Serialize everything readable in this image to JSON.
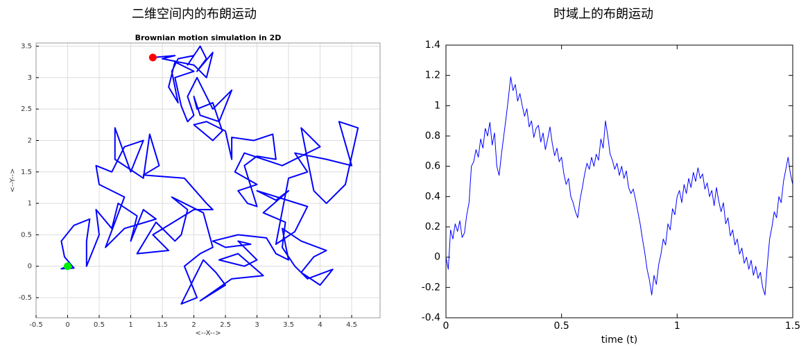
{
  "chart_data": [
    {
      "type": "line",
      "heading": "二维空间内的布朗运动",
      "title": "Brownian motion simulation in 2D",
      "xlabel": "<--X-->",
      "ylabel": "<--Y-->",
      "grid": true,
      "color": "#0000ff",
      "start_color": "#00ee00",
      "end_color": "#ff0000",
      "xlim": [
        -0.5,
        4.95
      ],
      "ylim": [
        -0.82,
        3.55
      ],
      "xticks": [
        -0.5,
        0,
        0.5,
        1,
        1.5,
        2,
        2.5,
        3,
        3.5,
        4,
        4.5
      ],
      "yticks": [
        -0.5,
        0,
        0.5,
        1,
        1.5,
        2,
        2.5,
        3,
        3.5
      ],
      "x": [
        0,
        -0.1,
        0.1,
        -0.05,
        -0.1,
        0.1,
        0.35,
        0.3,
        0.3,
        0.5,
        0.45,
        0.7,
        0.8,
        1.1,
        1.0,
        1.2,
        1.4,
        0.9,
        0.6,
        0.9,
        0.5,
        0.45,
        0.7,
        0.9,
        1.2,
        1.0,
        0.75,
        0.75,
        1.2,
        1.3,
        1.45,
        1.2,
        1.85,
        2.2,
        2.3,
        2.0,
        1.35,
        1.6,
        1.1,
        1.4,
        1.7,
        1.8,
        1.9,
        1.65,
        2.15,
        2.3,
        2.1,
        1.85,
        2.05,
        1.8,
        2.15,
        2.35,
        2.5,
        2.1,
        2.6,
        3.1,
        2.7,
        2.4,
        2.8,
        3.0,
        2.9,
        2.7,
        2.9,
        2.5,
        2.3,
        2.7,
        3.15,
        3.3,
        3.5,
        3.4,
        3.7,
        4.1,
        3.9,
        3.7,
        4.0,
        4.2,
        3.8,
        3.6,
        3.4,
        3.45,
        3.1,
        3.5,
        3.3,
        3.0,
        3.8,
        3.6,
        3.3,
        3.5,
        3.8,
        3.6,
        4.1,
        4.5,
        4.3,
        4.6,
        4.4,
        4.1,
        3.9,
        3.7,
        4.0,
        3.4,
        2.8,
        2.65,
        3.0,
        2.7,
        2.85,
        3.0,
        2.8,
        3.0,
        3.3,
        3.25,
        2.95,
        2.6,
        2.6,
        2.5,
        2.2,
        2.0,
        2.3,
        2.45,
        2.3,
        2.05,
        2.0,
        2.1,
        2.4,
        2.6,
        2.3,
        2.05,
        1.9,
        2.0,
        1.9,
        1.8,
        1.7,
        2.0,
        1.7,
        1.6,
        1.75,
        1.65,
        1.75,
        2.0,
        1.9,
        2.1,
        2.2,
        2.05,
        2.3,
        2.2,
        2.0,
        1.5,
        1.7,
        1.35
      ],
      "values": [
        0,
        -0.04,
        -0.03,
        0.15,
        0.4,
        0.65,
        0.75,
        0.4,
        0,
        0.5,
        0.9,
        0.6,
        1.0,
        0.8,
        0.4,
        0.9,
        0.75,
        0.6,
        0.3,
        1.1,
        1.3,
        1.6,
        1.5,
        1.9,
        2.0,
        1.5,
        2.2,
        1.7,
        1.4,
        2.1,
        1.6,
        1.45,
        1.4,
        1.0,
        0.9,
        0.9,
        0.5,
        0.25,
        0.2,
        0.7,
        0.4,
        0.5,
        0.9,
        1.1,
        0.85,
        0.3,
        0.2,
        0,
        -0.5,
        -0.6,
        0.1,
        -0.1,
        -0.3,
        -0.55,
        -0.2,
        -0.15,
        0.2,
        0.1,
        0,
        0.1,
        0.2,
        0.4,
        0.35,
        0.3,
        0.4,
        0.5,
        0.45,
        0.2,
        0.1,
        0.6,
        0.4,
        0.25,
        0.15,
        -0.1,
        -0.3,
        -0.05,
        -0.2,
        0,
        0.3,
        0.7,
        0.85,
        1.2,
        1.05,
        1.2,
        0.95,
        0.55,
        0.35,
        1.4,
        1.5,
        1.8,
        1.7,
        1.6,
        2.3,
        2.2,
        1.3,
        1.0,
        1.2,
        2.2,
        1.9,
        1.6,
        1.8,
        1.5,
        1.3,
        1.2,
        1.0,
        0.95,
        1.6,
        1.75,
        1.7,
        2.1,
        2.0,
        2.05,
        1.7,
        2.15,
        2.3,
        2.25,
        2.0,
        2.15,
        2.6,
        2.5,
        2.7,
        2.4,
        2.3,
        2.8,
        2.5,
        3.0,
        2.7,
        2.4,
        2.3,
        2.55,
        3.0,
        3.1,
        3.25,
        2.85,
        2.6,
        3.1,
        3.3,
        3.35,
        3.2,
        3.5,
        3.3,
        3.1,
        3.4,
        3.0,
        3.2,
        3.3,
        3.35,
        3.32
      ]
    },
    {
      "type": "line",
      "heading": "时域上的布朗运动",
      "xlabel": "time (t)",
      "grid": false,
      "color": "#0000ff",
      "xlim": [
        0,
        1.5
      ],
      "ylim": [
        -0.4,
        1.4
      ],
      "xticks": [
        0,
        0.5,
        1,
        1.5
      ],
      "yticks": [
        -0.4,
        -0.2,
        0,
        0.2,
        0.4,
        0.6,
        0.8,
        1,
        1.2,
        1.4
      ],
      "x": [
        0,
        0.01,
        0.02,
        0.03,
        0.04,
        0.05,
        0.06,
        0.07,
        0.08,
        0.09,
        0.1,
        0.11,
        0.12,
        0.13,
        0.14,
        0.15,
        0.16,
        0.17,
        0.18,
        0.19,
        0.2,
        0.21,
        0.22,
        0.23,
        0.24,
        0.25,
        0.26,
        0.27,
        0.28,
        0.29,
        0.3,
        0.31,
        0.32,
        0.33,
        0.34,
        0.35,
        0.36,
        0.37,
        0.38,
        0.39,
        0.4,
        0.41,
        0.42,
        0.43,
        0.44,
        0.45,
        0.46,
        0.47,
        0.48,
        0.49,
        0.5,
        0.51,
        0.52,
        0.53,
        0.54,
        0.55,
        0.56,
        0.57,
        0.58,
        0.59,
        0.6,
        0.61,
        0.62,
        0.63,
        0.64,
        0.65,
        0.66,
        0.67,
        0.68,
        0.69,
        0.7,
        0.71,
        0.72,
        0.73,
        0.74,
        0.75,
        0.76,
        0.77,
        0.78,
        0.79,
        0.8,
        0.81,
        0.82,
        0.83,
        0.84,
        0.85,
        0.86,
        0.87,
        0.88,
        0.89,
        0.9,
        0.91,
        0.92,
        0.93,
        0.94,
        0.95,
        0.96,
        0.97,
        0.98,
        0.99,
        1.0,
        1.01,
        1.02,
        1.03,
        1.04,
        1.05,
        1.06,
        1.07,
        1.08,
        1.09,
        1.1,
        1.11,
        1.12,
        1.13,
        1.14,
        1.15,
        1.16,
        1.17,
        1.18,
        1.19,
        1.2,
        1.21,
        1.22,
        1.23,
        1.24,
        1.25,
        1.26,
        1.27,
        1.28,
        1.29,
        1.3,
        1.31,
        1.32,
        1.33,
        1.34,
        1.35,
        1.36,
        1.37,
        1.38,
        1.39,
        1.4,
        1.41,
        1.42,
        1.43,
        1.44,
        1.45,
        1.46,
        1.47,
        1.48,
        1.49,
        1.5
      ],
      "values": [
        0,
        -0.08,
        0.18,
        0.12,
        0.22,
        0.17,
        0.24,
        0.13,
        0.16,
        0.28,
        0.36,
        0.6,
        0.63,
        0.71,
        0.66,
        0.78,
        0.72,
        0.85,
        0.8,
        0.89,
        0.74,
        0.82,
        0.6,
        0.54,
        0.68,
        0.8,
        0.92,
        1.05,
        1.19,
        1.1,
        1.14,
        1.03,
        1.08,
        1.0,
        0.93,
        0.98,
        0.86,
        0.9,
        0.79,
        0.85,
        0.87,
        0.76,
        0.82,
        0.71,
        0.78,
        0.86,
        0.75,
        0.67,
        0.72,
        0.63,
        0.66,
        0.55,
        0.48,
        0.52,
        0.4,
        0.36,
        0.3,
        0.26,
        0.38,
        0.46,
        0.55,
        0.62,
        0.58,
        0.66,
        0.6,
        0.68,
        0.64,
        0.78,
        0.72,
        0.9,
        0.8,
        0.68,
        0.64,
        0.58,
        0.62,
        0.54,
        0.6,
        0.52,
        0.57,
        0.46,
        0.42,
        0.45,
        0.38,
        0.3,
        0.22,
        0.12,
        0.03,
        -0.08,
        -0.15,
        -0.25,
        -0.12,
        -0.18,
        -0.05,
        0.02,
        0.12,
        0.08,
        0.22,
        0.18,
        0.32,
        0.28,
        0.4,
        0.44,
        0.36,
        0.48,
        0.42,
        0.52,
        0.46,
        0.56,
        0.5,
        0.59,
        0.52,
        0.55,
        0.45,
        0.49,
        0.4,
        0.44,
        0.34,
        0.46,
        0.37,
        0.3,
        0.36,
        0.22,
        0.26,
        0.14,
        0.18,
        0.08,
        0.12,
        0.02,
        0.06,
        -0.04,
        0,
        -0.08,
        -0.02,
        -0.12,
        -0.06,
        -0.14,
        -0.1,
        -0.2,
        -0.25,
        -0.05,
        0.12,
        0.2,
        0.3,
        0.26,
        0.4,
        0.36,
        0.5,
        0.58,
        0.66,
        0.55,
        0.48
      ]
    }
  ]
}
